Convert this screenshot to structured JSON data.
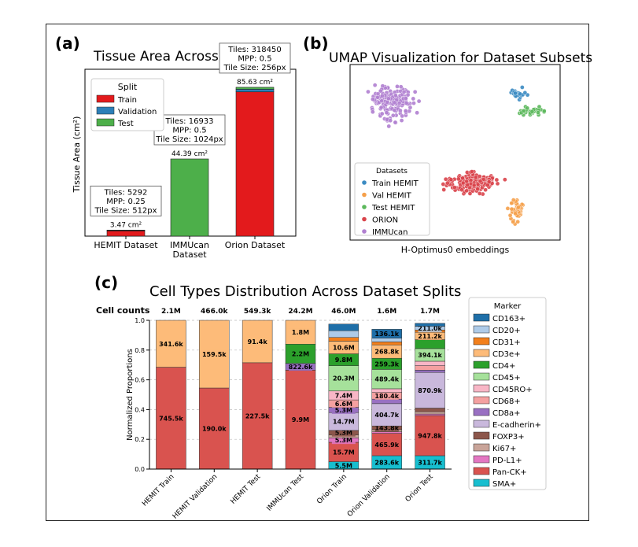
{
  "panels": {
    "a": "(a)",
    "b": "(b)",
    "c": "(c)"
  },
  "chart_data": [
    {
      "type": "bar",
      "title": "Tissue Area Across Datasets",
      "ylabel": "Tissue Area (cm²)",
      "categories": [
        "HEMIT Dataset",
        "IMMUcan\nDataset",
        "Orion Dataset"
      ],
      "legend": {
        "title": "Split",
        "entries": [
          "Train",
          "Validation",
          "Test"
        ],
        "colors": [
          "#e31a1c",
          "#2c7fb8",
          "#4daf4a"
        ],
        "placement": "top-left"
      },
      "series": [
        {
          "name": "Train",
          "values": [
            3.0,
            0,
            83.0
          ]
        },
        {
          "name": "Validation",
          "values": [
            0.25,
            0,
            1.5
          ]
        },
        {
          "name": "Test",
          "values": [
            0.22,
            44.39,
            1.13
          ]
        }
      ],
      "totals": [
        "3.47 cm²",
        "44.39 cm²",
        "85.63 cm²"
      ],
      "annotations": [
        [
          "Tiles: 5292",
          "MPP: 0.25",
          "Tile Size: 512px"
        ],
        [
          "Tiles: 16933",
          "MPP: 0.5",
          "Tile Size: 1024px"
        ],
        [
          "Tiles: 318450",
          "MPP: 0.5",
          "Tile Size: 256px"
        ]
      ],
      "ylim": [
        0,
        96
      ],
      "grid": false
    },
    {
      "type": "scatter",
      "title": "UMAP Visualization for Dataset Subsets",
      "xlabel": "H-Optimus0 embeddings",
      "legend": {
        "title": "Datasets",
        "entries": [
          "Train HEMIT",
          "Val HEMIT",
          "Test HEMIT",
          "ORION",
          "IMMUcan"
        ],
        "colors": [
          "#3b8bc2",
          "#f5a04a",
          "#5cb85c",
          "#d9434a",
          "#b07fd0"
        ],
        "placement": "bottom-left"
      },
      "clusters": [
        {
          "series": "IMMUcan",
          "center": [
            2.2,
            7.4
          ],
          "spread": [
            1.5,
            1.3
          ],
          "n": 160
        },
        {
          "series": "ORION",
          "center": [
            6.4,
            3.1
          ],
          "spread": [
            1.9,
            0.8
          ],
          "n": 170
        },
        {
          "series": "Train HEMIT",
          "center": [
            8.8,
            7.9
          ],
          "spread": [
            0.6,
            0.4
          ],
          "n": 30
        },
        {
          "series": "Test HEMIT",
          "center": [
            9.5,
            7.0
          ],
          "spread": [
            0.9,
            0.4
          ],
          "n": 35
        },
        {
          "series": "Val HEMIT",
          "center": [
            8.7,
            1.6
          ],
          "spread": [
            0.5,
            1.1
          ],
          "n": 45
        }
      ],
      "xlim": [
        0,
        11
      ],
      "ylim": [
        0,
        9.5
      ]
    },
    {
      "type": "bar",
      "title": "Cell Types Distribution Across Dataset Splits",
      "ylabel": "Normalized Proportions",
      "row_label": "Cell counts",
      "categories": [
        "HEMIT Train",
        "HEMIT Validation",
        "HEMIT Test",
        "IMMUcan Test",
        "Orion Train",
        "Orion Validation",
        "Orion Test"
      ],
      "totals": [
        "2.1M",
        "466.0k",
        "549.3k",
        "24.2M",
        "46.0M",
        "1.6M",
        "1.7M"
      ],
      "ylim": [
        0,
        1.0
      ],
      "yticks": [
        "0.0",
        "0.2",
        "0.4",
        "0.6",
        "0.8",
        "1.0"
      ],
      "legend_title": "Marker",
      "markers": [
        {
          "name": "CD163+",
          "color": "#1f6fa8"
        },
        {
          "name": "CD20+",
          "color": "#aecbe8"
        },
        {
          "name": "CD31+",
          "color": "#f27f1b"
        },
        {
          "name": "CD3e+",
          "color": "#fdbb79"
        },
        {
          "name": "CD4+",
          "color": "#2ca02c"
        },
        {
          "name": "CD45+",
          "color": "#a6e19b"
        },
        {
          "name": "CD45RO+",
          "color": "#f8b6c6"
        },
        {
          "name": "CD68+",
          "color": "#f4a0a0"
        },
        {
          "name": "CD8a+",
          "color": "#9970c2"
        },
        {
          "name": "E-cadherin+",
          "color": "#c9b8dc"
        },
        {
          "name": "FOXP3+",
          "color": "#8c564b"
        },
        {
          "name": "Ki67+",
          "color": "#c9a499"
        },
        {
          "name": "PD-L1+",
          "color": "#e377c2"
        },
        {
          "name": "Pan-CK+",
          "color": "#d9534f"
        },
        {
          "name": "SMA+",
          "color": "#17becf"
        }
      ],
      "series": [
        {
          "name": "SMA+",
          "values": [
            0,
            0,
            0,
            0,
            0.05,
            0.09,
            0.09
          ],
          "labels": [
            "",
            "",
            "",
            "",
            "5.5M",
            "283.6k",
            "311.7k"
          ]
        },
        {
          "name": "Pan-CK+",
          "values": [
            0.685,
            0.545,
            0.715,
            0.665,
            0.13,
            0.15,
            0.27
          ],
          "labels": [
            "745.5k",
            "190.0k",
            "227.5k",
            "9.9M",
            "15.7M",
            "465.9k",
            "947.8k"
          ]
        },
        {
          "name": "PD-L1+",
          "values": [
            0,
            0,
            0,
            0,
            0.03,
            0.01,
            0.01
          ],
          "labels": [
            "",
            "",
            "",
            "",
            "5.3M",
            "",
            ""
          ]
        },
        {
          "name": "Ki67+",
          "values": [
            0,
            0,
            0,
            0,
            0.02,
            0.015,
            0.015
          ],
          "labels": [
            "",
            "",
            "",
            "",
            "",
            "",
            ""
          ]
        },
        {
          "name": "FOXP3+",
          "values": [
            0,
            0,
            0,
            0,
            0.03,
            0.025,
            0.025
          ],
          "labels": [
            "",
            "",
            "",
            "",
            "5.3M",
            "143.8k",
            ""
          ]
        },
        {
          "name": "E-cadherin+",
          "values": [
            0,
            0,
            0,
            0,
            0.12,
            0.15,
            0.24
          ],
          "labels": [
            "",
            "",
            "",
            "",
            "14.7M",
            "404.7k",
            "870.9k"
          ]
        },
        {
          "name": "CD8a+",
          "values": [
            0,
            0,
            0,
            0.045,
            0.035,
            0.03,
            0.015
          ],
          "labels": [
            "",
            "",
            "",
            "822.6k",
            "5.3M",
            "",
            ""
          ]
        },
        {
          "name": "CD68+",
          "values": [
            0,
            0,
            0,
            0,
            0.05,
            0.045,
            0.03
          ],
          "labels": [
            "",
            "",
            "",
            "",
            "6.6M",
            "180.4k",
            ""
          ]
        },
        {
          "name": "CD45RO+",
          "values": [
            0,
            0,
            0,
            0,
            0.06,
            0.025,
            0.03
          ],
          "labels": [
            "",
            "",
            "",
            "",
            "7.4M",
            "",
            ""
          ]
        },
        {
          "name": "CD45+",
          "values": [
            0,
            0,
            0,
            0,
            0.17,
            0.13,
            0.085
          ],
          "labels": [
            "",
            "",
            "",
            "",
            "20.3M",
            "489.4k",
            "394.1k"
          ]
        },
        {
          "name": "CD4+",
          "values": [
            0,
            0,
            0,
            0.13,
            0.08,
            0.075,
            0.06
          ],
          "labels": [
            "",
            "",
            "",
            "2.2M",
            "9.8M",
            "259.3k",
            ""
          ]
        },
        {
          "name": "CD3e+",
          "values": [
            0.315,
            0.455,
            0.285,
            0.16,
            0.085,
            0.09,
            0.05
          ],
          "labels": [
            "341.6k",
            "159.5k",
            "91.4k",
            "1.8M",
            "10.6M",
            "268.8k",
            "211.2k"
          ]
        },
        {
          "name": "CD31+",
          "values": [
            0,
            0,
            0,
            0,
            0.025,
            0.02,
            0.015
          ],
          "labels": [
            "",
            "",
            "",
            "",
            "",
            "",
            ""
          ]
        },
        {
          "name": "CD20+",
          "values": [
            0,
            0,
            0,
            0,
            0.045,
            0.025,
            0.025
          ],
          "labels": [
            "",
            "",
            "",
            "",
            "",
            "",
            "211.0k"
          ]
        },
        {
          "name": "CD163+",
          "values": [
            0,
            0,
            0,
            0,
            0.045,
            0.06,
            0.02
          ],
          "labels": [
            "",
            "",
            "",
            "",
            "",
            "136.1k",
            ""
          ]
        }
      ],
      "grid": "y-dashed"
    }
  ]
}
